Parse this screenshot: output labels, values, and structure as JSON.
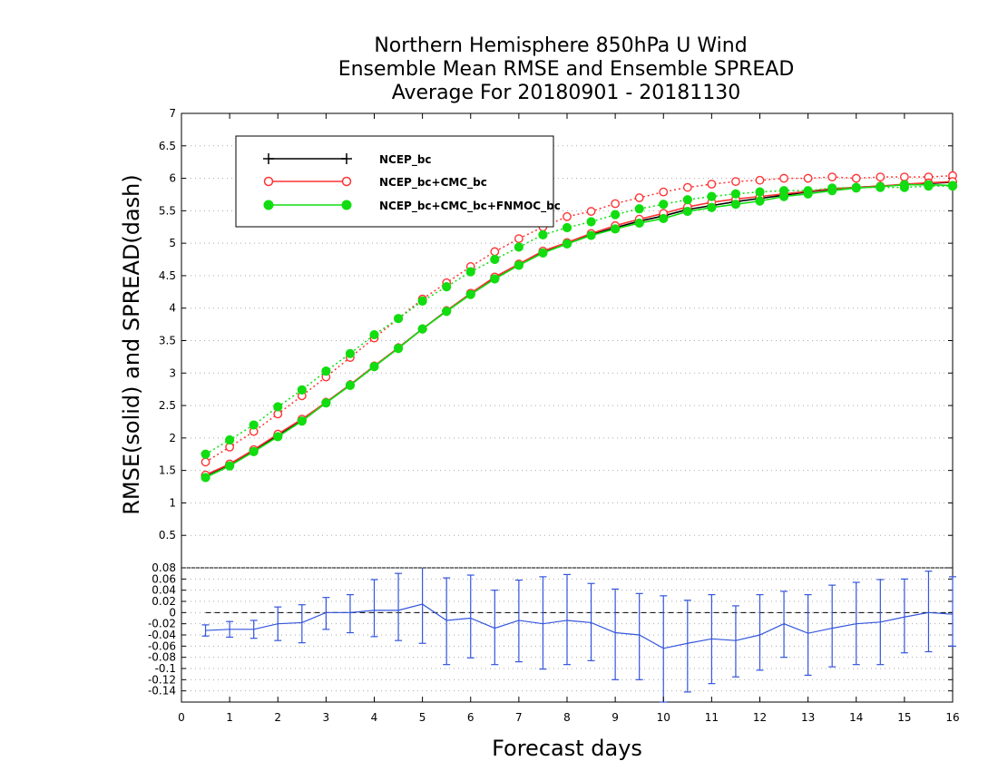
{
  "chart_data": [
    {
      "type": "line",
      "title": [
        "Northern Hemisphere 850hPa U Wind",
        "Ensemble Mean RMSE and Ensemble SPREAD",
        "Average For 20180901 - 20181130"
      ],
      "ylabel": "RMSE(solid) and SPREAD(dash)",
      "xlabel": "",
      "xlim": [
        0,
        16
      ],
      "ylim": [
        0,
        7
      ],
      "yticks": [
        "0.5",
        "1",
        "1.5",
        "2",
        "2.5",
        "3",
        "3.5",
        "4",
        "4.5",
        "5",
        "5.5",
        "6",
        "6.5",
        "7"
      ],
      "grid": true,
      "legend_position": "top-left",
      "x": [
        0.5,
        1,
        1.5,
        2,
        2.5,
        3,
        3.5,
        4,
        4.5,
        5,
        5.5,
        6,
        6.5,
        7,
        7.5,
        8,
        8.5,
        9,
        9.5,
        10,
        10.5,
        11,
        11.5,
        12,
        12.5,
        13,
        13.5,
        14,
        14.5,
        15,
        15.5,
        16
      ],
      "series": [
        {
          "name": "NCEP_bc",
          "color": "#000000",
          "marker": "plus",
          "rmse": [
            1.42,
            1.59,
            1.81,
            2.04,
            2.28,
            2.55,
            2.82,
            3.1,
            3.39,
            3.68,
            3.96,
            4.22,
            4.46,
            4.67,
            4.86,
            5.0,
            5.13,
            5.24,
            5.34,
            5.42,
            5.52,
            5.58,
            5.64,
            5.69,
            5.74,
            5.79,
            5.83,
            5.86,
            5.88,
            5.9,
            5.92,
            5.94
          ],
          "spread": []
        },
        {
          "name": "NCEP_bc+CMC_bc",
          "color": "#ff3333",
          "marker": "open-circle",
          "rmse": [
            1.43,
            1.6,
            1.82,
            2.06,
            2.29,
            2.55,
            2.82,
            3.11,
            3.39,
            3.68,
            3.96,
            4.23,
            4.48,
            4.68,
            4.88,
            5.01,
            5.15,
            5.27,
            5.37,
            5.46,
            5.56,
            5.63,
            5.68,
            5.72,
            5.76,
            5.8,
            5.84,
            5.86,
            5.88,
            5.91,
            5.93,
            5.95
          ],
          "spread": [
            1.63,
            1.86,
            2.1,
            2.37,
            2.65,
            2.94,
            3.24,
            3.54,
            3.84,
            4.14,
            4.39,
            4.64,
            4.87,
            5.07,
            5.25,
            5.41,
            5.49,
            5.61,
            5.7,
            5.79,
            5.86,
            5.91,
            5.95,
            5.97,
            6.0,
            6.0,
            6.02,
            6.0,
            6.02,
            6.02,
            6.02,
            6.04
          ]
        },
        {
          "name": "NCEP_bc+CMC_bc+FNMOC_bc",
          "color": "#11dd11",
          "marker": "filled-circle",
          "rmse": [
            1.39,
            1.57,
            1.79,
            2.02,
            2.26,
            2.54,
            2.81,
            3.1,
            3.38,
            3.68,
            3.95,
            4.21,
            4.45,
            4.66,
            4.85,
            4.99,
            5.12,
            5.22,
            5.31,
            5.38,
            5.49,
            5.55,
            5.6,
            5.65,
            5.72,
            5.76,
            5.81,
            5.85,
            5.87,
            5.9,
            5.9,
            5.89
          ],
          "spread": [
            1.75,
            1.97,
            2.2,
            2.48,
            2.74,
            3.03,
            3.3,
            3.59,
            3.84,
            4.11,
            4.33,
            4.56,
            4.75,
            4.94,
            5.13,
            5.24,
            5.33,
            5.44,
            5.53,
            5.6,
            5.67,
            5.72,
            5.76,
            5.79,
            5.81,
            5.81,
            5.85,
            5.86,
            5.86,
            5.86,
            5.88,
            5.88
          ]
        }
      ]
    },
    {
      "type": "line",
      "xlabel": "Forecast days",
      "ylabel": "",
      "xlim": [
        0,
        16
      ],
      "ylim": [
        -0.16,
        0.08
      ],
      "xticks": [
        "0",
        "1",
        "2",
        "3",
        "4",
        "5",
        "6",
        "7",
        "8",
        "9",
        "10",
        "11",
        "12",
        "13",
        "14",
        "15",
        "16"
      ],
      "yticks": [
        "0.08",
        "0.06",
        "0.04",
        "0.02",
        "0",
        "-0.02",
        "-0.04",
        "-0.06",
        "-0.08",
        "-0.1",
        "-0.12",
        "-0.14"
      ],
      "grid": true,
      "x": [
        0.5,
        1,
        1.5,
        2,
        2.5,
        3,
        3.5,
        4,
        4.5,
        5,
        5.5,
        6,
        6.5,
        7,
        7.5,
        8,
        8.5,
        9,
        9.5,
        10,
        10.5,
        11,
        11.5,
        12,
        12.5,
        13,
        13.5,
        14,
        14.5,
        15,
        15.5,
        16
      ],
      "series": [
        {
          "color": "#3355dd",
          "values": [
            -0.032,
            -0.03,
            -0.03,
            -0.02,
            -0.018,
            0.0,
            0.0,
            0.004,
            0.004,
            0.015,
            -0.014,
            -0.01,
            -0.028,
            -0.014,
            -0.02,
            -0.014,
            -0.018,
            -0.036,
            -0.04,
            -0.064,
            -0.055,
            -0.047,
            -0.05,
            -0.04,
            -0.02,
            -0.037,
            -0.028,
            -0.02,
            -0.017,
            -0.008,
            0.0,
            -0.003
          ],
          "err_low": [
            -0.042,
            -0.044,
            -0.046,
            -0.05,
            -0.054,
            -0.03,
            -0.036,
            -0.043,
            -0.05,
            -0.055,
            -0.093,
            -0.081,
            -0.093,
            -0.088,
            -0.101,
            -0.093,
            -0.086,
            -0.12,
            -0.12,
            -0.16,
            -0.142,
            -0.127,
            -0.115,
            -0.103,
            -0.08,
            -0.112,
            -0.097,
            -0.093,
            -0.093,
            -0.072,
            -0.07,
            -0.06
          ],
          "err_high": [
            -0.022,
            -0.016,
            -0.014,
            0.01,
            0.014,
            0.027,
            0.032,
            0.059,
            0.07,
            0.085,
            0.062,
            0.067,
            0.04,
            0.058,
            0.064,
            0.068,
            0.052,
            0.042,
            0.034,
            0.03,
            0.022,
            0.032,
            0.012,
            0.032,
            0.038,
            0.032,
            0.049,
            0.054,
            0.059,
            0.06,
            0.074,
            0.064
          ]
        }
      ]
    }
  ]
}
